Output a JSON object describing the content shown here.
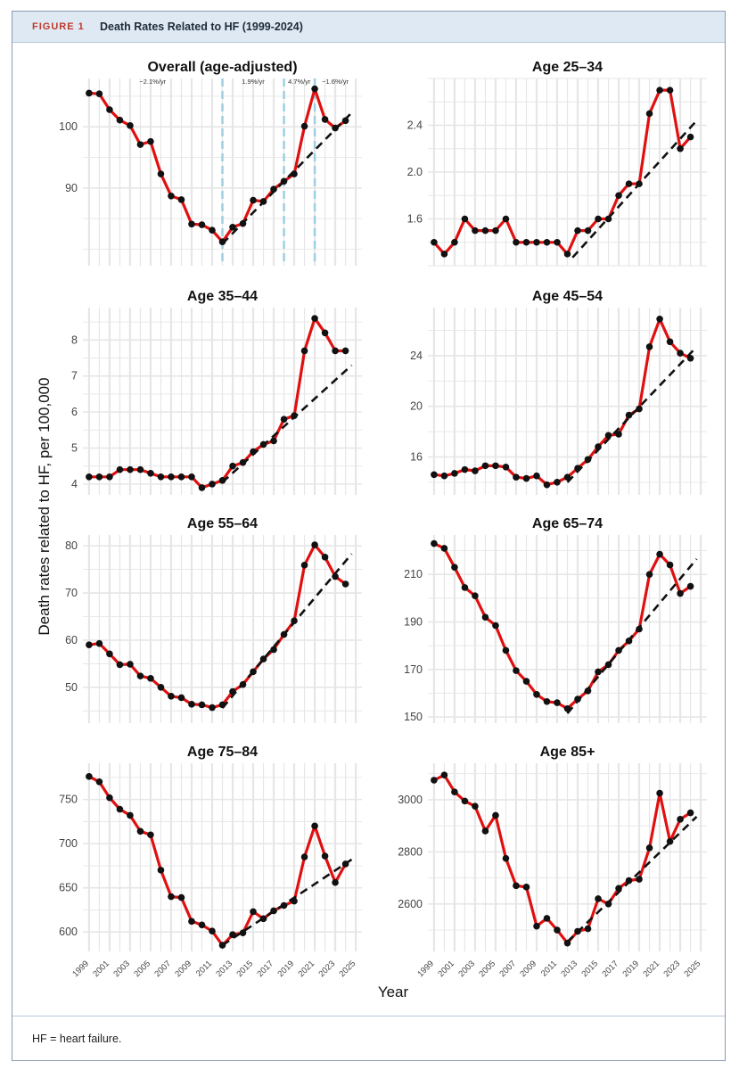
{
  "figure": {
    "label": "FIGURE 1",
    "title": "Death Rates Related to HF (1999-2024)",
    "footnote": "HF = heart failure."
  },
  "shared_axes": {
    "ylabel": "Death rates related to HF, per 100,000",
    "xlabel": "Year",
    "x_tick_labels": [
      "1999",
      "2001",
      "2003",
      "2005",
      "2007",
      "2009",
      "2011",
      "2013",
      "2015",
      "2017",
      "2019",
      "2021",
      "2023",
      "2025"
    ]
  },
  "colors": {
    "observed_line": "#e01010",
    "point": "#111111",
    "trend": "#111111",
    "joinpoint": "#9fcfe2",
    "grid": "#e6e6e6"
  },
  "chart_data": [
    {
      "type": "line",
      "title": "Overall (age-adjusted)",
      "x": [
        1999,
        2000,
        2001,
        2002,
        2003,
        2004,
        2005,
        2006,
        2007,
        2008,
        2009,
        2010,
        2011,
        2012,
        2013,
        2014,
        2015,
        2016,
        2017,
        2018,
        2019,
        2020,
        2021,
        2022,
        2023,
        2024
      ],
      "series": [
        {
          "values": [
            105.5,
            105.4,
            102.8,
            101.1,
            100.2,
            97.1,
            97.6,
            92.3,
            88.7,
            88.1,
            84.1,
            84.0,
            83.1,
            81.2,
            83.6,
            84.2,
            88.0,
            87.8,
            89.8,
            91.1,
            92.3,
            100.1,
            106.2,
            101.2,
            99.8,
            101.0
          ]
        }
      ],
      "trend": {
        "x": [
          2012,
          2024.6
        ],
        "y": [
          80.9,
          102.3
        ]
      },
      "joinpoints": [
        2012,
        2018,
        2021
      ],
      "annotations": [
        "−2.1%/yr",
        "1.9%/yr",
        "4.7%/yr",
        "−1.6%/yr"
      ],
      "y_ticks": [
        90,
        100
      ],
      "ylim": [
        77.3,
        107.9
      ],
      "xlim": [
        1998.4,
        2025.6
      ]
    },
    {
      "type": "line",
      "title": "Age 25–34",
      "x": [
        1999,
        2000,
        2001,
        2002,
        2003,
        2004,
        2005,
        2006,
        2007,
        2008,
        2009,
        2010,
        2011,
        2012,
        2013,
        2014,
        2015,
        2016,
        2017,
        2018,
        2019,
        2020,
        2021,
        2022,
        2023,
        2024
      ],
      "series": [
        {
          "values": [
            1.4,
            1.3,
            1.4,
            1.6,
            1.5,
            1.5,
            1.5,
            1.6,
            1.4,
            1.4,
            1.4,
            1.4,
            1.4,
            1.3,
            1.5,
            1.5,
            1.6,
            1.6,
            1.8,
            1.9,
            1.9,
            2.5,
            2.7,
            2.7,
            2.2,
            2.3
          ]
        }
      ],
      "trend": {
        "x": [
          2012.5,
          2024.6
        ],
        "y": [
          1.27,
          2.44
        ]
      },
      "y_ticks": [
        1.6,
        2.0,
        2.4
      ],
      "ylim": [
        1.2,
        2.8
      ],
      "xlim": [
        1998.4,
        2025.6
      ]
    },
    {
      "type": "line",
      "title": "Age 35–44",
      "x": [
        1999,
        2000,
        2001,
        2002,
        2003,
        2004,
        2005,
        2006,
        2007,
        2008,
        2009,
        2010,
        2011,
        2012,
        2013,
        2014,
        2015,
        2016,
        2017,
        2018,
        2019,
        2020,
        2021,
        2022,
        2023,
        2024
      ],
      "series": [
        {
          "values": [
            4.2,
            4.2,
            4.2,
            4.4,
            4.4,
            4.4,
            4.3,
            4.2,
            4.2,
            4.2,
            4.2,
            3.9,
            4.0,
            4.1,
            4.5,
            4.6,
            4.9,
            5.1,
            5.2,
            5.8,
            5.9,
            7.7,
            8.6,
            8.2,
            7.7,
            7.7
          ]
        }
      ],
      "trend": {
        "x": [
          2012,
          2024.6
        ],
        "y": [
          4.05,
          7.3
        ]
      },
      "y_ticks": [
        4,
        5,
        6,
        7,
        8
      ],
      "ylim": [
        3.7,
        8.9
      ],
      "xlim": [
        1998.4,
        2025.6
      ]
    },
    {
      "type": "line",
      "title": "Age 45–54",
      "x": [
        1999,
        2000,
        2001,
        2002,
        2003,
        2004,
        2005,
        2006,
        2007,
        2008,
        2009,
        2010,
        2011,
        2012,
        2013,
        2014,
        2015,
        2016,
        2017,
        2018,
        2019,
        2020,
        2021,
        2022,
        2023,
        2024
      ],
      "series": [
        {
          "values": [
            14.6,
            14.5,
            14.7,
            15.0,
            14.9,
            15.3,
            15.3,
            15.2,
            14.4,
            14.3,
            14.5,
            13.8,
            14.0,
            14.4,
            15.1,
            15.8,
            16.8,
            17.7,
            17.8,
            19.3,
            19.8,
            24.7,
            26.9,
            25.1,
            24.2,
            23.8
          ]
        }
      ],
      "trend": {
        "x": [
          2012,
          2024.6
        ],
        "y": [
          14.0,
          24.7
        ]
      },
      "y_ticks": [
        16,
        20,
        24
      ],
      "ylim": [
        13.0,
        27.8
      ],
      "xlim": [
        1998.4,
        2025.6
      ]
    },
    {
      "type": "line",
      "title": "Age 55–64",
      "x": [
        1999,
        2000,
        2001,
        2002,
        2003,
        2004,
        2005,
        2006,
        2007,
        2008,
        2009,
        2010,
        2011,
        2012,
        2013,
        2014,
        2015,
        2016,
        2017,
        2018,
        2019,
        2020,
        2021,
        2022,
        2023,
        2024
      ],
      "series": [
        {
          "values": [
            59.0,
            59.3,
            57.1,
            54.8,
            54.9,
            52.4,
            51.9,
            50.0,
            48.1,
            47.8,
            46.4,
            46.3,
            45.7,
            46.3,
            49.1,
            50.6,
            53.3,
            56.0,
            58.0,
            61.2,
            64.1,
            75.9,
            80.2,
            77.6,
            73.5,
            71.9
          ]
        }
      ],
      "trend": {
        "x": [
          2012,
          2024.6
        ],
        "y": [
          45.6,
          78.3
        ]
      },
      "y_ticks": [
        50,
        60,
        70,
        80
      ],
      "ylim": [
        42.4,
        82.3
      ],
      "xlim": [
        1998.4,
        2025.6
      ]
    },
    {
      "type": "line",
      "title": "Age 65–74",
      "x": [
        1999,
        2000,
        2001,
        2002,
        2003,
        2004,
        2005,
        2006,
        2007,
        2008,
        2009,
        2010,
        2011,
        2012,
        2013,
        2014,
        2015,
        2016,
        2017,
        2018,
        2019,
        2020,
        2021,
        2022,
        2023,
        2024
      ],
      "series": [
        {
          "values": [
            223.0,
            221.0,
            213.0,
            204.5,
            201.0,
            192.0,
            188.5,
            178.0,
            169.5,
            165.0,
            159.5,
            156.5,
            156.0,
            153.5,
            157.5,
            161.0,
            169.0,
            172.0,
            178.0,
            182.0,
            187.0,
            210.0,
            218.5,
            214.0,
            202.0,
            205.0
          ]
        }
      ],
      "trend": {
        "x": [
          2012,
          2024.6
        ],
        "y": [
          151.5,
          216.5
        ]
      },
      "y_ticks": [
        150,
        170,
        190,
        210
      ],
      "ylim": [
        147.4,
        226.6
      ],
      "xlim": [
        1998.4,
        2025.6
      ]
    },
    {
      "type": "line",
      "title": "Age 75–84",
      "x": [
        1999,
        2000,
        2001,
        2002,
        2003,
        2004,
        2005,
        2006,
        2007,
        2008,
        2009,
        2010,
        2011,
        2012,
        2013,
        2014,
        2015,
        2016,
        2017,
        2018,
        2019,
        2020,
        2021,
        2022,
        2023,
        2024
      ],
      "series": [
        {
          "values": [
            776,
            770,
            752,
            739,
            732,
            714,
            710,
            670,
            640,
            639,
            612,
            608,
            601,
            585,
            597,
            599,
            623,
            615,
            624,
            630,
            635,
            685,
            720,
            686,
            656,
            677
          ]
        }
      ],
      "trend": {
        "x": [
          2012,
          2024.6
        ],
        "y": [
          585,
          682
        ]
      },
      "y_ticks": [
        600,
        650,
        700,
        750
      ],
      "ylim": [
        578,
        791
      ],
      "xlim": [
        1998.4,
        2025.6
      ]
    },
    {
      "type": "line",
      "title": "Age 85+",
      "x": [
        1999,
        2000,
        2001,
        2002,
        2003,
        2004,
        2005,
        2006,
        2007,
        2008,
        2009,
        2010,
        2011,
        2012,
        2013,
        2014,
        2015,
        2016,
        2017,
        2018,
        2019,
        2020,
        2021,
        2022,
        2023,
        2024
      ],
      "series": [
        {
          "values": [
            3075,
            3095,
            3030,
            2995,
            2975,
            2880,
            2940,
            2775,
            2670,
            2665,
            2515,
            2545,
            2500,
            2450,
            2495,
            2505,
            2620,
            2600,
            2660,
            2690,
            2695,
            2815,
            3025,
            2840,
            2925,
            2950
          ]
        }
      ],
      "trend": {
        "x": [
          2012,
          2024.6
        ],
        "y": [
          2455,
          2935
        ]
      },
      "y_ticks": [
        2600,
        2800,
        3000
      ],
      "ylim": [
        2418,
        3140
      ],
      "xlim": [
        1998.4,
        2025.6
      ]
    }
  ]
}
